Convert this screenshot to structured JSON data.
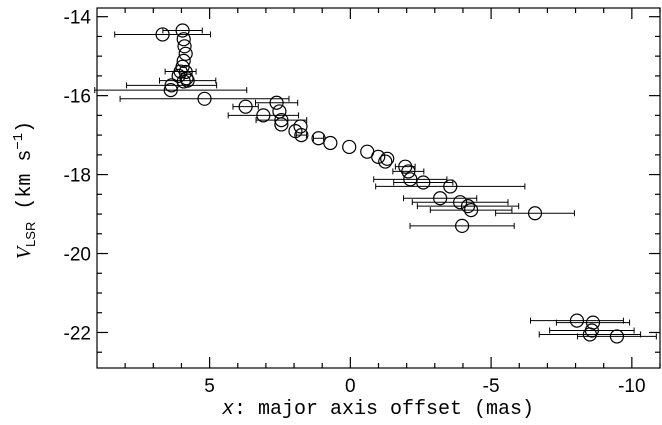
{
  "chart_data": {
    "type": "scatter",
    "xlabel": {
      "var": "x",
      "text": ": major axis offset (mas)"
    },
    "ylabel": {
      "symbol": "V",
      "subscript": "LSR",
      "text": " (km s",
      "superscript": "−1",
      "close": ")"
    },
    "x": [
      6.67,
      5.96,
      5.92,
      5.89,
      5.85,
      5.92,
      5.96,
      6.03,
      6.1,
      5.85,
      5.82,
      5.92,
      5.78,
      6.35,
      6.38,
      5.18,
      3.72,
      2.62,
      3.09,
      2.52,
      2.45,
      2.45,
      1.77,
      1.95,
      1.74,
      1.13,
      0.71,
      0.04,
      -0.6,
      -0.99,
      -1.31,
      -1.24,
      -1.95,
      -2.06,
      -2.13,
      -2.59,
      -3.55,
      -3.19,
      -3.9,
      -4.18,
      -4.29,
      -6.56,
      -3.97,
      -8.05,
      -8.62,
      -8.58,
      -8.51,
      -9.47
    ],
    "values": [
      -14.45,
      -14.35,
      -14.57,
      -14.75,
      -14.94,
      -15.12,
      -15.27,
      -15.39,
      -15.5,
      -15.4,
      -15.56,
      -15.64,
      -15.62,
      -15.74,
      -15.86,
      -16.08,
      -16.28,
      -16.18,
      -16.5,
      -16.4,
      -16.62,
      -16.73,
      -16.78,
      -16.9,
      -17.0,
      -17.08,
      -17.2,
      -17.3,
      -17.42,
      -17.55,
      -17.6,
      -17.67,
      -17.8,
      -17.92,
      -18.12,
      -18.2,
      -18.3,
      -18.6,
      -18.7,
      -18.8,
      -18.9,
      -18.98,
      -19.3,
      -21.7,
      -21.75,
      -21.95,
      -22.05,
      -22.1
    ],
    "xerr": [
      1.7,
      0.7,
      null,
      null,
      null,
      null,
      null,
      0.55,
      null,
      null,
      null,
      null,
      1.0,
      1.6,
      2.7,
      3.0,
      0.45,
      0.75,
      1.25,
      null,
      0.9,
      null,
      null,
      null,
      0.18,
      0.18,
      null,
      null,
      null,
      null,
      null,
      null,
      0.35,
      0.55,
      1.3,
      1.05,
      2.65,
      1.3,
      1.7,
      1.8,
      1.45,
      1.4,
      1.85,
      1.65,
      1.3,
      1.5,
      1.8,
      1.4
    ],
    "color": "#000000",
    "xlim": [
      9,
      -11
    ],
    "ylim": [
      -22.9,
      -13.78
    ],
    "xticks": [
      5,
      0,
      -5,
      -10
    ],
    "yticks": [
      -14,
      -16,
      -18,
      -20,
      -22
    ],
    "xminorticks": [
      8,
      7,
      6,
      4,
      3,
      2,
      1,
      -1,
      -2,
      -3,
      -4,
      -6,
      -7,
      -8,
      -9,
      -11
    ],
    "yminorticks": [
      -14.5,
      -15,
      -15.5,
      -16.5,
      -17,
      -17.5,
      -18.5,
      -19,
      -19.5,
      -20.5,
      -21,
      -21.5,
      -22.5
    ]
  }
}
